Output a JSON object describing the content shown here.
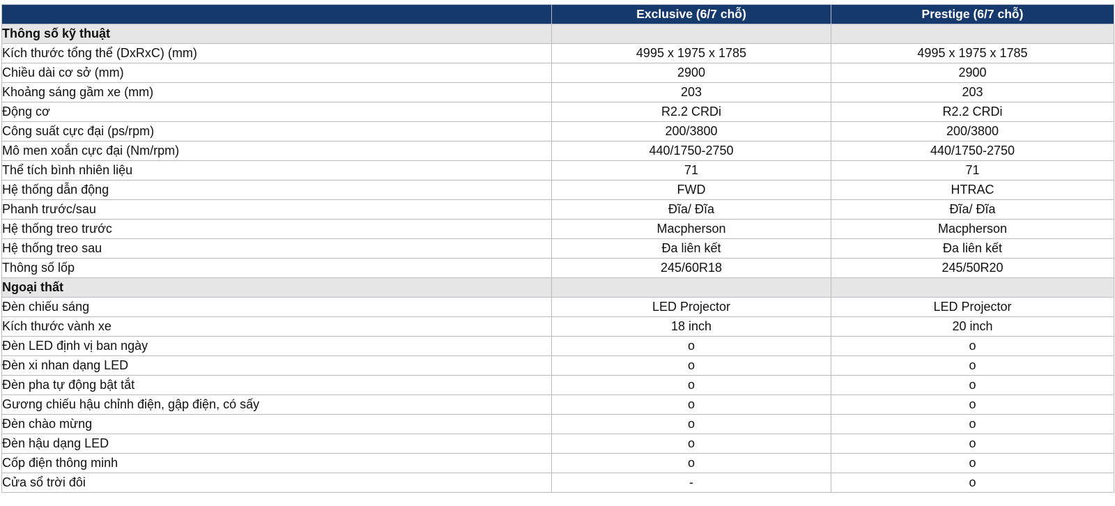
{
  "header": {
    "col1": "",
    "col2": "Exclusive (6/7 chỗ)",
    "col3": "Prestige (6/7 chỗ)"
  },
  "sections": [
    {
      "title": "Thông số kỹ thuật",
      "rows": [
        {
          "label": "Kích thước tổng thể (DxRxC) (mm)",
          "exclusive": "4995 x 1975 x 1785",
          "prestige": "4995 x 1975 x 1785"
        },
        {
          "label": "Chiều dài cơ sở (mm)",
          "exclusive": "2900",
          "prestige": "2900"
        },
        {
          "label": "Khoảng sáng gầm xe (mm)",
          "exclusive": "203",
          "prestige": "203"
        },
        {
          "label": "Động cơ",
          "exclusive": "R2.2 CRDi",
          "prestige": "R2.2 CRDi"
        },
        {
          "label": "Công suất cực đại (ps/rpm)",
          "exclusive": "200/3800",
          "prestige": "200/3800"
        },
        {
          "label": "Mô men xoắn cực đại (Nm/rpm)",
          "exclusive": "440/1750-2750",
          "prestige": "440/1750-2750"
        },
        {
          "label": "Thể tích bình nhiên liệu",
          "exclusive": "71",
          "prestige": "71"
        },
        {
          "label": "Hệ thống dẫn động",
          "exclusive": "FWD",
          "prestige": "HTRAC"
        },
        {
          "label": "Phanh trước/sau",
          "exclusive": "Đĩa/ Đĩa",
          "prestige": "Đĩa/ Đĩa"
        },
        {
          "label": "Hệ thống treo trước",
          "exclusive": "Macpherson",
          "prestige": "Macpherson"
        },
        {
          "label": "Hệ thống treo sau",
          "exclusive": "Đa liên kết",
          "prestige": "Đa liên kết"
        },
        {
          "label": "Thông số lốp",
          "exclusive": "245/60R18",
          "prestige": "245/50R20"
        }
      ]
    },
    {
      "title": "Ngoại thất",
      "rows": [
        {
          "label": "Đèn chiếu sáng",
          "exclusive": "LED Projector",
          "prestige": "LED Projector"
        },
        {
          "label": "Kích thước vành xe",
          "exclusive": "18 inch",
          "prestige": "20 inch"
        },
        {
          "label": "Đèn LED định vị ban ngày",
          "exclusive": "o",
          "prestige": "o"
        },
        {
          "label": "Đèn xi nhan dạng LED",
          "exclusive": "o",
          "prestige": "o"
        },
        {
          "label": "Đèn pha tự động bật tắt",
          "exclusive": "o",
          "prestige": "o"
        },
        {
          "label": "Gương chiếu hậu chỉnh điện, gập điện, có sấy",
          "exclusive": "o",
          "prestige": "o"
        },
        {
          "label": "Đèn chào mừng",
          "exclusive": "o",
          "prestige": "o"
        },
        {
          "label": "Đèn hậu dạng LED",
          "exclusive": "o",
          "prestige": "o"
        },
        {
          "label": "Cốp điện thông minh",
          "exclusive": "o",
          "prestige": "o"
        },
        {
          "label": "Cửa sổ trời đôi",
          "exclusive": "-",
          "prestige": "o"
        }
      ]
    }
  ],
  "colors": {
    "header_bg": "#173a6e",
    "header_text": "#ffffff",
    "section_bg": "#e6e6e6",
    "border": "#b9bcc2"
  }
}
